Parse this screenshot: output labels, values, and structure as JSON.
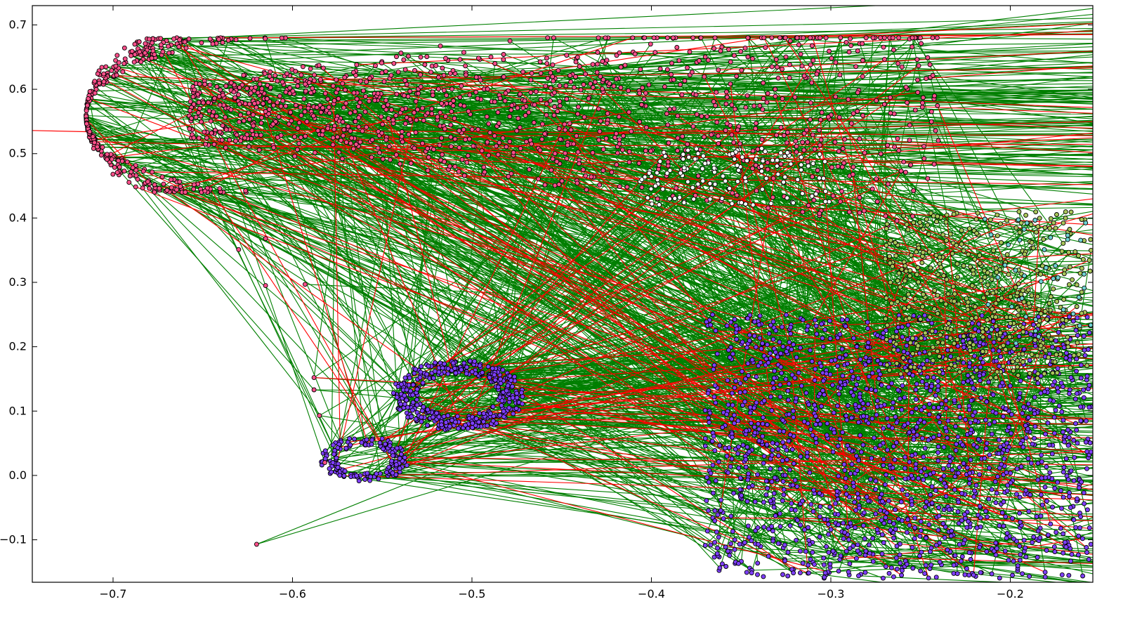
{
  "chart_data": {
    "type": "scatter",
    "title": "",
    "xlabel": "",
    "ylabel": "",
    "xlim": [
      -0.745,
      -0.154
    ],
    "ylim": [
      -0.166,
      0.73
    ],
    "grid": false,
    "legend": "none",
    "x_ticks": [
      -0.7,
      -0.6,
      -0.5,
      -0.4,
      -0.3,
      -0.2
    ],
    "x_tick_labels": [
      "−0.7",
      "−0.6",
      "−0.5",
      "−0.4",
      "−0.3",
      "−0.2"
    ],
    "y_ticks": [
      -0.1,
      0.0,
      0.1,
      0.2,
      0.3,
      0.4,
      0.5,
      0.6,
      0.7
    ],
    "y_tick_labels": [
      "−0.1",
      "0.0",
      "0.1",
      "0.2",
      "0.3",
      "0.4",
      "0.5",
      "0.6",
      "0.7"
    ],
    "colors": {
      "edge_green": "#007f00",
      "edge_red": "#ff0000",
      "pink": "#ff4f8a",
      "purple": "#7f3fff",
      "white": "#ffffff",
      "olive": "#a9c65a",
      "cyan": "#6fd3d3",
      "marker_edge": "#000000"
    },
    "clusters": [
      {
        "name": "pink-arc",
        "color": "pink",
        "x_range": [
          -0.715,
          -0.24
        ],
        "y_range": [
          0.33,
          0.68
        ],
        "count": 1400
      },
      {
        "name": "white-band",
        "color": "white",
        "x_range": [
          -0.41,
          -0.3
        ],
        "y_range": [
          0.42,
          0.51
        ],
        "count": 120
      },
      {
        "name": "purple-loop-upper",
        "color": "purple",
        "x_range": [
          -0.545,
          -0.47
        ],
        "y_range": [
          0.07,
          0.18
        ],
        "count": 380
      },
      {
        "name": "purple-loop-lower",
        "color": "purple",
        "x_range": [
          -0.585,
          -0.535
        ],
        "y_range": [
          -0.01,
          0.06
        ],
        "count": 150
      },
      {
        "name": "purple-cloud-right",
        "color": "purple",
        "x_range": [
          -0.37,
          -0.155
        ],
        "y_range": [
          -0.16,
          0.25
        ],
        "count": 1500
      },
      {
        "name": "olive-cloud",
        "color": "olive",
        "x_range": [
          -0.27,
          -0.155
        ],
        "y_range": [
          0.15,
          0.41
        ],
        "count": 420
      },
      {
        "name": "cyan-cloud",
        "color": "cyan",
        "x_range": [
          -0.215,
          -0.155
        ],
        "y_range": [
          0.2,
          0.4
        ],
        "count": 40
      }
    ],
    "annotated_points": [
      {
        "x": -0.713,
        "y": 0.534,
        "color": "pink"
      },
      {
        "x": -0.63,
        "y": 0.351,
        "color": "pink"
      },
      {
        "x": -0.615,
        "y": 0.295,
        "color": "pink"
      },
      {
        "x": -0.615,
        "y": 0.368,
        "color": "pink"
      },
      {
        "x": -0.593,
        "y": 0.297,
        "color": "pink"
      },
      {
        "x": -0.588,
        "y": 0.133,
        "color": "pink"
      },
      {
        "x": -0.588,
        "y": 0.152,
        "color": "pink"
      },
      {
        "x": -0.585,
        "y": 0.093,
        "color": "pink"
      },
      {
        "x": -0.582,
        "y": 0.02,
        "color": "pink"
      },
      {
        "x": -0.62,
        "y": -0.107,
        "color": "pink"
      }
    ],
    "edges_green_count": 1500,
    "edges_red_count": 220
  }
}
